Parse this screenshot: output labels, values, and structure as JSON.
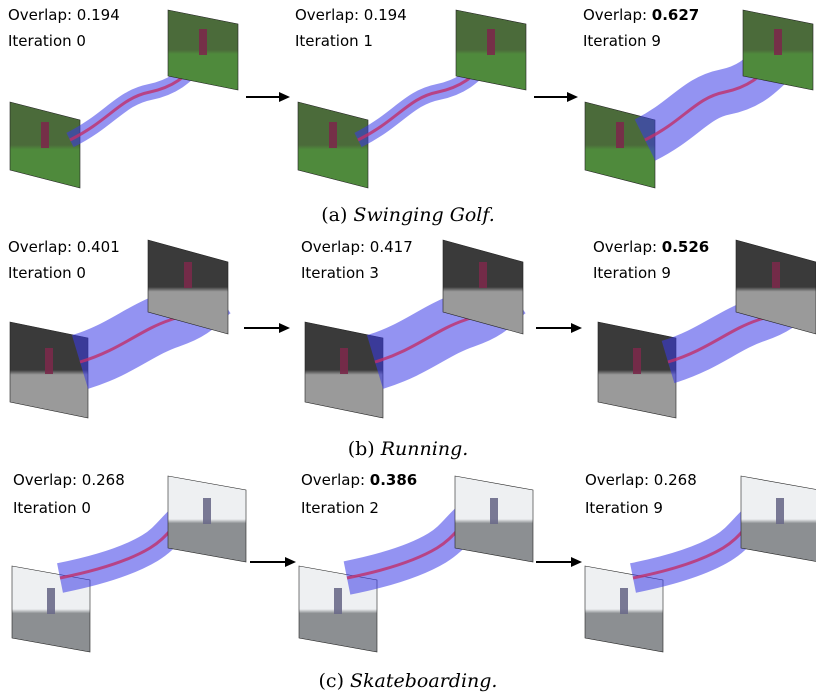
{
  "figure": {
    "rows": [
      {
        "caption_prefix": "(a)",
        "caption_title": "Swinging Golf.",
        "scene": "golf",
        "panels": [
          {
            "overlap_label": "Overlap:",
            "overlap_value": "0.194",
            "bold": false,
            "iteration": "Iteration 0"
          },
          {
            "overlap_label": "Overlap:",
            "overlap_value": "0.194",
            "bold": false,
            "iteration": "Iteration 1"
          },
          {
            "overlap_label": "Overlap:",
            "overlap_value": "0.627",
            "bold": true,
            "iteration": "Iteration 9"
          }
        ]
      },
      {
        "caption_prefix": "(b)",
        "caption_title": "Running.",
        "scene": "running",
        "panels": [
          {
            "overlap_label": "Overlap:",
            "overlap_value": "0.401",
            "bold": false,
            "iteration": "Iteration 0"
          },
          {
            "overlap_label": "Overlap:",
            "overlap_value": "0.417",
            "bold": false,
            "iteration": "Iteration 3"
          },
          {
            "overlap_label": "Overlap:",
            "overlap_value": "0.526",
            "bold": true,
            "iteration": "Iteration 9"
          }
        ]
      },
      {
        "caption_prefix": "(c)",
        "caption_title": "Skateboarding.",
        "scene": "skate",
        "panels": [
          {
            "overlap_label": "Overlap:",
            "overlap_value": "0.268",
            "bold": false,
            "iteration": "Iteration 0"
          },
          {
            "overlap_label": "Overlap:",
            "overlap_value": "0.386",
            "bold": true,
            "iteration": "Iteration 2"
          },
          {
            "overlap_label": "Overlap:",
            "overlap_value": "0.268",
            "bold": false,
            "iteration": "Iteration 9"
          }
        ]
      }
    ],
    "colors": {
      "tube_fill": "#3a3ae8",
      "track_line": "#c0306a",
      "golf_sky": "#4b6b3a",
      "golf_grass": "#4f8a3c",
      "run_dark": "#3a3a3a",
      "run_light": "#9a9a9a",
      "skate_sky": "#eef0f2",
      "skate_road": "#8c8f92"
    }
  }
}
